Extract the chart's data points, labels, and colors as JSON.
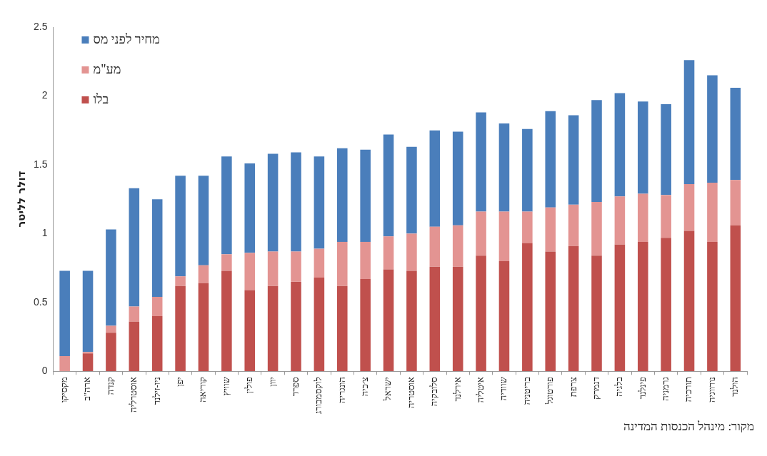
{
  "chart_data": {
    "type": "bar",
    "stacked": true,
    "ylabel": "דולר לליטר",
    "legend": "top left",
    "categories": [
      "מקסיקו",
      "ארה\"ב",
      "קנדה",
      "אוסטרליה",
      "ניו-זילנד",
      "יפן",
      "קוריאה",
      "שוויץ",
      "פולין",
      "יוון",
      "ספרד",
      "לוקסמבורג",
      "הונגריה",
      "צ׳כיה",
      "ישראל",
      "אוסטריה",
      "סלובקיה",
      "אירלנד",
      "איטליה",
      "שוודיה",
      "בריטניה",
      "פורטוגל",
      "צרפת",
      "דנמרק",
      "בלגיה",
      "פינלנד",
      "גרמניה",
      "תורכיה",
      "נורווגיה",
      "הולנד"
    ],
    "series": [
      {
        "name": "בלו",
        "color": "#c0504d",
        "values": [
          0,
          0.13,
          0.28,
          0.36,
          0.4,
          0.62,
          0.64,
          0.73,
          0.59,
          0.62,
          0.65,
          0.68,
          0.62,
          0.67,
          0.74,
          0.73,
          0.76,
          0.76,
          0.84,
          0.8,
          0.93,
          0.87,
          0.91,
          0.84,
          0.92,
          0.94,
          0.97,
          1.02,
          0.94,
          1.06
        ]
      },
      {
        "name": "מע\"מ",
        "color": "#e39492",
        "values": [
          0.11,
          0.01,
          0.05,
          0.11,
          0.14,
          0.07,
          0.13,
          0.12,
          0.27,
          0.25,
          0.22,
          0.21,
          0.32,
          0.27,
          0.24,
          0.27,
          0.29,
          0.3,
          0.32,
          0.36,
          0.23,
          0.32,
          0.3,
          0.39,
          0.35,
          0.35,
          0.31,
          0.34,
          0.43,
          0.33
        ]
      },
      {
        "name": "מחיר לפני מס",
        "color": "#4a7ebb",
        "values": [
          0.62,
          0.59,
          0.7,
          0.86,
          0.71,
          0.73,
          0.65,
          0.71,
          0.65,
          0.71,
          0.72,
          0.67,
          0.68,
          0.67,
          0.74,
          0.63,
          0.7,
          0.68,
          0.72,
          0.64,
          0.6,
          0.7,
          0.65,
          0.74,
          0.75,
          0.67,
          0.66,
          0.9,
          0.78,
          0.67
        ]
      }
    ],
    "ylim": [
      0,
      2.5
    ],
    "yticks": [
      0,
      0.5,
      1,
      1.5,
      2,
      2.5
    ],
    "annotations": [
      "מקור: מינהל הכנסות המדינה"
    ]
  }
}
